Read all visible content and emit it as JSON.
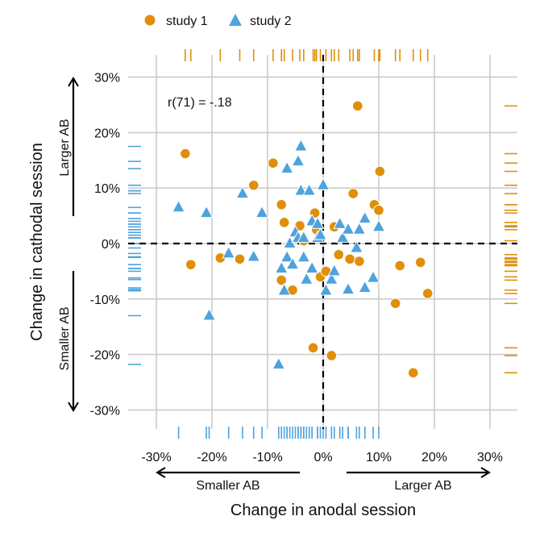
{
  "colors": {
    "study1": "#E08F0B",
    "study2": "#4EA3DD",
    "grid": "#cccccc",
    "zero_line": "#000000",
    "text": "#111111"
  },
  "legend": {
    "position": "top",
    "entries": [
      {
        "label": "study 1",
        "shape": "circle",
        "color": "#E08F0B"
      },
      {
        "label": "study 2",
        "shape": "triangle",
        "color": "#4EA3DD"
      }
    ]
  },
  "chart_data": {
    "type": "scatter",
    "title": "",
    "xlabel": "Change in anodal session",
    "ylabel": "Change in cathodal session",
    "xlim": [
      -35,
      35
    ],
    "ylim": [
      -33,
      34
    ],
    "grid": true,
    "x_ticks": [
      -30,
      -20,
      -10,
      0,
      10,
      20,
      30
    ],
    "x_tick_labels": [
      "-30%",
      "-20%",
      "-10%",
      "0%",
      "10%",
      "20%",
      "30%"
    ],
    "y_ticks": [
      -30,
      -20,
      -10,
      0,
      10,
      20,
      30
    ],
    "y_tick_labels": [
      "-30%",
      "-20%",
      "-10%",
      "0%",
      "10%",
      "20%",
      "30%"
    ],
    "annotation": "r(71) = -.18",
    "x_arrows": {
      "left": "Smaller AB",
      "right": "Larger AB"
    },
    "y_arrows": {
      "top": "Larger AB",
      "bottom": "Smaller AB"
    },
    "series": [
      {
        "name": "study 1",
        "marker": "circle",
        "points": [
          [
            -24.8,
            16.2
          ],
          [
            -23.8,
            -3.8
          ],
          [
            -18.5,
            -2.6
          ],
          [
            -15,
            -2.8
          ],
          [
            -12.5,
            10.5
          ],
          [
            -9,
            14.5
          ],
          [
            -7.5,
            7
          ],
          [
            -7,
            3.8
          ],
          [
            -7.5,
            -6.6
          ],
          [
            -5.5,
            -8.4
          ],
          [
            -4.2,
            3.2
          ],
          [
            -3.5,
            0.5
          ],
          [
            -1.5,
            5.5
          ],
          [
            -1.2,
            2.5
          ],
          [
            -0.5,
            -6
          ],
          [
            0.5,
            -5
          ],
          [
            -1.8,
            -18.8
          ],
          [
            1.5,
            -20.2
          ],
          [
            2,
            3
          ],
          [
            2.8,
            -2
          ],
          [
            4.8,
            -2.8
          ],
          [
            5.4,
            9
          ],
          [
            6.2,
            24.8
          ],
          [
            6.5,
            -3.2
          ],
          [
            9.2,
            7
          ],
          [
            10,
            6
          ],
          [
            10.2,
            13
          ],
          [
            13,
            -10.8
          ],
          [
            13.8,
            -4
          ],
          [
            16.2,
            -23.3
          ],
          [
            17.5,
            -3.4
          ],
          [
            18.8,
            -9
          ]
        ]
      },
      {
        "name": "study 2",
        "marker": "triangle",
        "points": [
          [
            -26,
            6.5
          ],
          [
            -21,
            5.5
          ],
          [
            -20.5,
            -13
          ],
          [
            -17,
            -1.8
          ],
          [
            -14.5,
            9
          ],
          [
            -12.5,
            -2.4
          ],
          [
            -11,
            5.5
          ],
          [
            -8,
            -21.8
          ],
          [
            -7.5,
            -4.5
          ],
          [
            -7,
            -8.5
          ],
          [
            -6.5,
            -2.5
          ],
          [
            -6.5,
            13.5
          ],
          [
            -6,
            0
          ],
          [
            -5.5,
            -3.8
          ],
          [
            -5,
            2
          ],
          [
            -4.5,
            1
          ],
          [
            -4.5,
            14.8
          ],
          [
            -4,
            17.5
          ],
          [
            -4,
            9.5
          ],
          [
            -3.5,
            -2.5
          ],
          [
            -3.5,
            1
          ],
          [
            -3,
            -6.5
          ],
          [
            -2.5,
            9.5
          ],
          [
            -2,
            4
          ],
          [
            -2,
            -4.5
          ],
          [
            -1,
            1
          ],
          [
            -1,
            3.5
          ],
          [
            -0.5,
            1.5
          ],
          [
            0,
            10.5
          ],
          [
            0.5,
            -8.5
          ],
          [
            1.5,
            -6.5
          ],
          [
            2,
            -5
          ],
          [
            3,
            3.5
          ],
          [
            3.5,
            1
          ],
          [
            4.5,
            2.5
          ],
          [
            4.5,
            -8.3
          ],
          [
            6,
            -0.8
          ],
          [
            6.5,
            2.5
          ],
          [
            7.5,
            -8
          ],
          [
            7.5,
            4.5
          ],
          [
            9,
            -6.2
          ],
          [
            10,
            3
          ]
        ]
      }
    ]
  }
}
